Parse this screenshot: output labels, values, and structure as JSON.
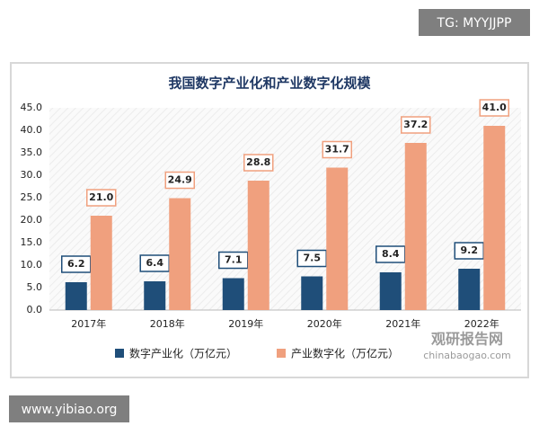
{
  "chart_data": {
    "type": "bar",
    "title": "我国数字产业化和产业数字化规模",
    "categories": [
      "2017年",
      "2018年",
      "2019年",
      "2020年",
      "2021年",
      "2022年"
    ],
    "series": [
      {
        "name": "数字产业化（万亿元）",
        "color": "#1f4e79",
        "values": [
          6.2,
          6.4,
          7.1,
          7.5,
          8.4,
          9.2
        ],
        "value_labels": [
          "6.2",
          "6.4",
          "7.1",
          "7.5",
          "8.4",
          "9.2"
        ]
      },
      {
        "name": "产业数字化（万亿元）",
        "color": "#f0a07e",
        "values": [
          21,
          24.9,
          28.8,
          31.7,
          37.2,
          41
        ],
        "value_labels": [
          "21.0",
          "24.9",
          "28.8",
          "31.7",
          "37.2",
          "41.0"
        ]
      }
    ],
    "ylim": [
      0,
      45
    ],
    "yticks": [
      {
        "value": 0,
        "label": "0.0"
      },
      {
        "value": 5,
        "label": "5.0"
      },
      {
        "value": 10,
        "label": "10.0"
      },
      {
        "value": 15,
        "label": "15.0"
      },
      {
        "value": 20,
        "label": "20.0"
      },
      {
        "value": 25,
        "label": "25.0"
      },
      {
        "value": 30,
        "label": "30.0"
      },
      {
        "value": 35,
        "label": "35.0"
      },
      {
        "value": 40,
        "label": "40.0"
      },
      {
        "value": 45,
        "label": "45.0"
      }
    ],
    "grid": false
  },
  "watermarks": [
    "TG: MYYJJPP",
    "www.yibiao.org",
    "观研报告网",
    "chinabaogao.com"
  ]
}
